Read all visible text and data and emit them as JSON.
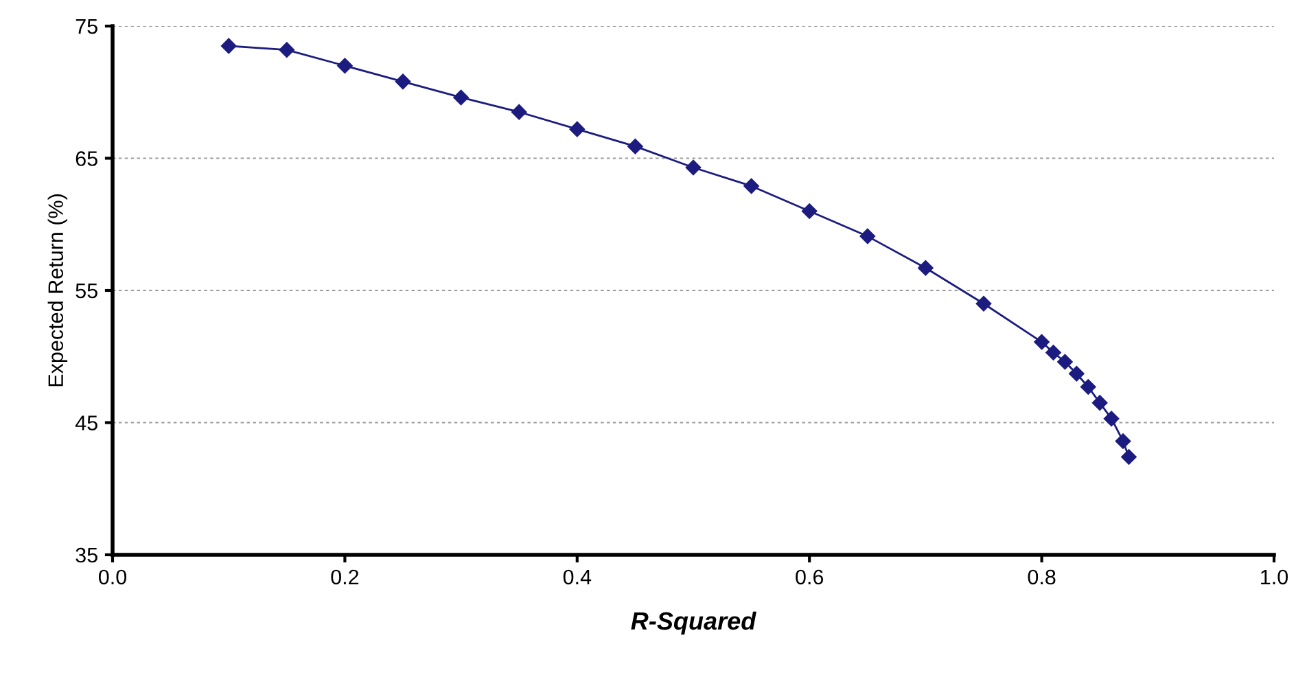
{
  "chart_data": {
    "type": "line",
    "xlabel": "R-Squared",
    "ylabel": "Expected Return (%)",
    "xlim": [
      0.0,
      1.0
    ],
    "xticks": [
      {
        "value": 0,
        "label": "0.0"
      },
      0.2,
      0.4,
      0.6,
      0.8,
      {
        "value": 1,
        "label": "1.0"
      }
    ],
    "ylim": [
      35,
      75
    ],
    "yticks": [
      35,
      45,
      55,
      65,
      75
    ],
    "grid": "y",
    "marker": "diamond",
    "line_style": "solid",
    "series": [
      {
        "color": "#1c1c80",
        "x": [
          0.1,
          0.15,
          0.2,
          0.25,
          0.3,
          0.35,
          0.4,
          0.45,
          0.5,
          0.55,
          0.6,
          0.65,
          0.7,
          0.75,
          0.8,
          0.81,
          0.82,
          0.83,
          0.84,
          0.85,
          0.86,
          0.87,
          0.875
        ],
        "values": [
          73.5,
          73.2,
          72.0,
          70.8,
          69.6,
          68.5,
          67.2,
          65.9,
          64.3,
          62.9,
          61.0,
          59.1,
          56.7,
          54.0,
          51.1,
          50.3,
          49.6,
          48.7,
          47.7,
          46.5,
          45.3,
          43.6,
          42.4
        ]
      }
    ]
  }
}
